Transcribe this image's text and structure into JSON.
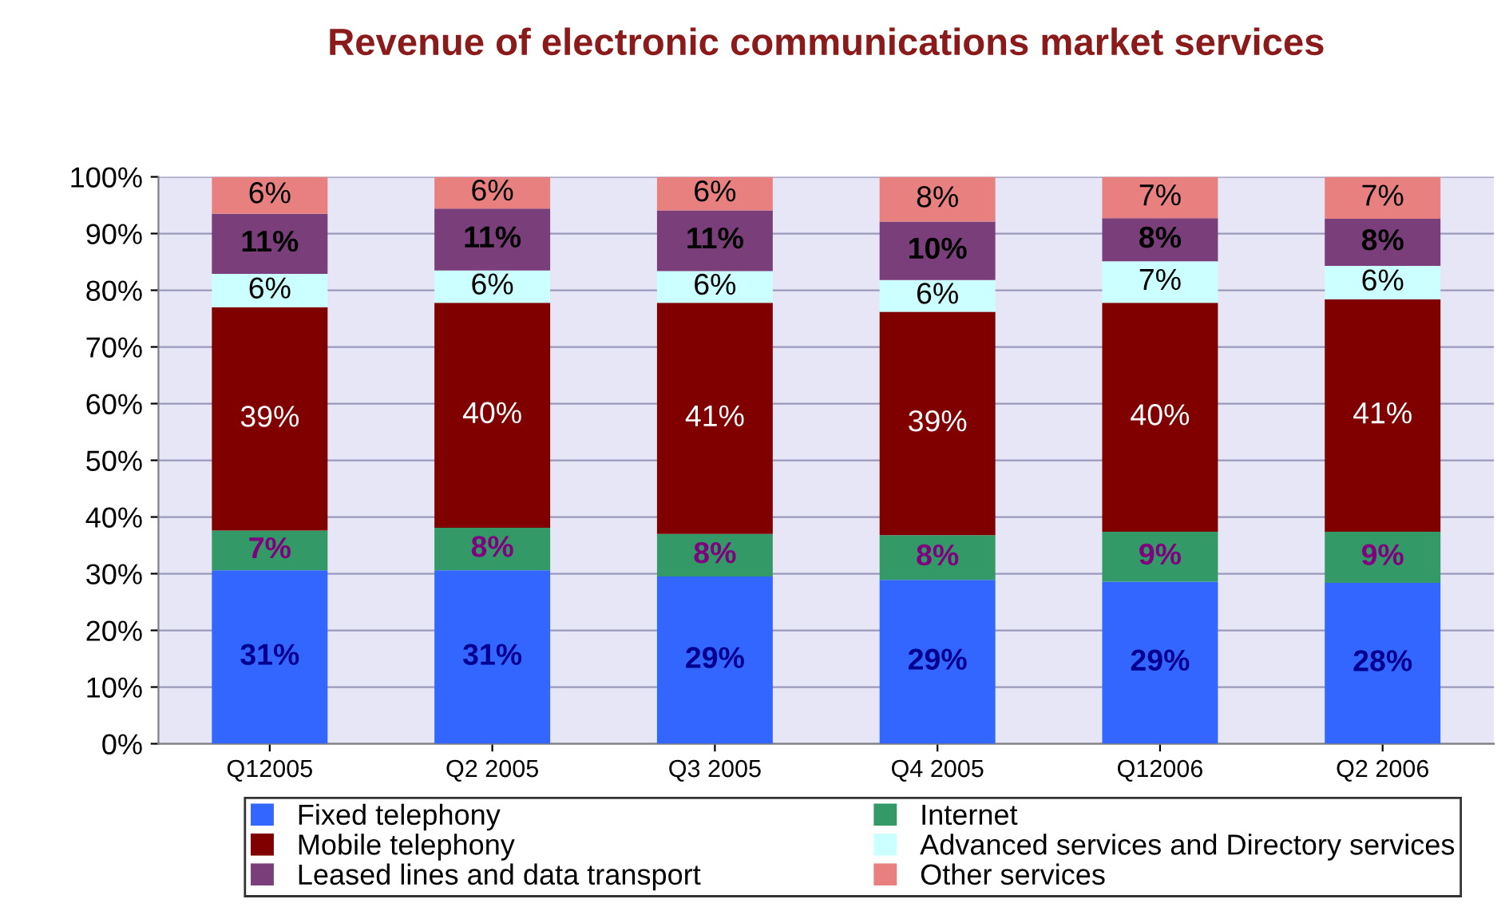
{
  "chart_data": {
    "type": "bar",
    "title": "Revenue of electronic communications market services",
    "categories": [
      "Q12005",
      "Q2 2005",
      "Q3 2005",
      "Q4 2005",
      "Q12006",
      "Q2 2006"
    ],
    "stacked": true,
    "ylim": [
      0,
      100
    ],
    "yticks": [
      {
        "value": 0,
        "label": "0%"
      },
      {
        "value": 10,
        "label": "10%"
      },
      {
        "value": 20,
        "label": "20%"
      },
      {
        "value": 30,
        "label": "30%"
      },
      {
        "value": 40,
        "label": "40%"
      },
      {
        "value": 50,
        "label": "50%"
      },
      {
        "value": 60,
        "label": "60%"
      },
      {
        "value": 70,
        "label": "70%"
      },
      {
        "value": 80,
        "label": "80%"
      },
      {
        "value": 90,
        "label": "90%"
      },
      {
        "value": 100,
        "label": "100%"
      }
    ],
    "grid": "y",
    "legend": "bottom",
    "series": [
      {
        "name": "Fixed telephony",
        "color": "#3366ff",
        "values": [
          30.6,
          30.6,
          29.5,
          28.9,
          28.6,
          28.4
        ],
        "value_labels": [
          "31%",
          "31%",
          "29%",
          "29%",
          "29%",
          "28%"
        ]
      },
      {
        "name": "Internet",
        "color": "#339966",
        "values": [
          7.0,
          7.5,
          7.5,
          7.9,
          8.8,
          9.0
        ],
        "value_labels": [
          "7%",
          "8%",
          "8%",
          "8%",
          "9%",
          "9%"
        ]
      },
      {
        "name": "Mobile telephony",
        "color": "#800000",
        "values": [
          39.4,
          39.7,
          40.8,
          39.4,
          40.4,
          41.0
        ],
        "value_labels": [
          "39%",
          "40%",
          "41%",
          "39%",
          "40%",
          "41%"
        ]
      },
      {
        "name": "Advanced services and Directory services",
        "color": "#ccffff",
        "values": [
          5.9,
          5.7,
          5.6,
          5.6,
          7.3,
          5.9
        ],
        "value_labels": [
          "6%",
          "6%",
          "6%",
          "6%",
          "7%",
          "6%"
        ]
      },
      {
        "name": "Leased lines and data transport",
        "color": "#7a3f7a",
        "values": [
          10.6,
          10.9,
          10.7,
          10.3,
          7.6,
          8.3
        ],
        "value_labels": [
          "11%",
          "11%",
          "11%",
          "10%",
          "8%",
          "8%"
        ]
      },
      {
        "name": "Other services",
        "color": "#e88080",
        "values": [
          6.5,
          5.6,
          5.9,
          7.9,
          7.3,
          7.4
        ],
        "value_labels": [
          "6%",
          "6%",
          "6%",
          "8%",
          "7%",
          "7%"
        ]
      }
    ]
  }
}
